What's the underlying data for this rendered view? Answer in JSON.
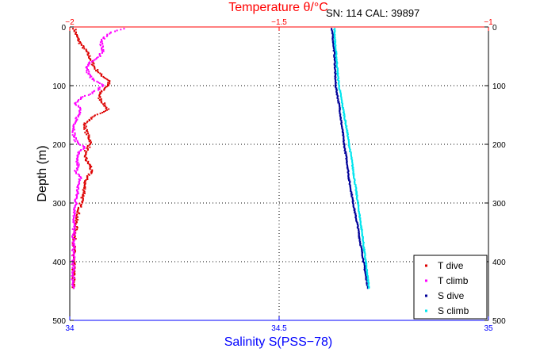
{
  "chart_data": {
    "type": "scatter",
    "title": "Temperature θ/°C",
    "annotation": "SN: 114  CAL: 39897",
    "xlabel": "Salinity S(PSS−78)",
    "ylabel": "Depth (m)",
    "x_bottom": {
      "label": "Salinity S(PSS−78)",
      "lim": [
        34,
        35
      ],
      "ticks": [
        34,
        34.5,
        35
      ],
      "tick_labels": [
        "34",
        "34.5",
        "35"
      ],
      "color": "#0000ff"
    },
    "x_top": {
      "label": "Temperature θ/°C",
      "lim": [
        -2,
        -1
      ],
      "ticks": [
        -2,
        -1.5,
        -1
      ],
      "tick_labels": [
        "−2",
        "−1.5",
        "−1"
      ],
      "color": "#ff0000"
    },
    "y": {
      "lim": [
        0,
        500
      ],
      "reversed": true,
      "ticks": [
        0,
        100,
        200,
        300,
        400,
        500
      ],
      "tick_labels": [
        "0",
        "100",
        "200",
        "300",
        "400",
        "500"
      ]
    },
    "grid": true,
    "legend_position": "bottom-right",
    "series": [
      {
        "name": "T dive",
        "axis": "temperature",
        "color": "#dd0000",
        "depth": [
          3,
          15,
          28,
          42,
          55,
          70,
          82,
          92,
          100,
          110,
          120,
          130,
          140,
          152,
          165,
          180,
          195,
          205,
          215,
          228,
          238,
          248,
          258,
          270,
          282,
          292,
          305,
          318,
          330,
          342,
          355,
          370,
          385,
          400,
          415,
          430,
          445
        ],
        "values": [
          -1.989,
          -1.984,
          -1.975,
          -1.96,
          -1.95,
          -1.94,
          -1.925,
          -1.905,
          -1.91,
          -1.925,
          -1.93,
          -1.92,
          -1.91,
          -1.94,
          -1.965,
          -1.96,
          -1.95,
          -1.955,
          -1.965,
          -1.96,
          -1.95,
          -1.95,
          -1.96,
          -1.965,
          -1.965,
          -1.97,
          -1.975,
          -1.98,
          -1.985,
          -1.985,
          -1.988,
          -1.99,
          -1.99,
          -1.991,
          -1.991,
          -1.991,
          -1.992
        ]
      },
      {
        "name": "T climb",
        "axis": "temperature",
        "color": "#ff00ff",
        "depth": [
          3,
          10,
          20,
          30,
          40,
          50,
          60,
          70,
          80,
          90,
          100,
          110,
          120,
          130,
          140,
          150,
          160,
          172,
          185,
          195,
          205,
          215,
          225,
          235,
          245,
          258,
          270,
          282,
          295,
          310,
          325,
          340,
          355,
          370,
          385,
          400,
          415,
          430,
          445
        ],
        "values": [
          -1.87,
          -1.905,
          -1.92,
          -1.925,
          -1.92,
          -1.93,
          -1.95,
          -1.96,
          -1.955,
          -1.945,
          -1.92,
          -1.94,
          -1.97,
          -1.985,
          -1.975,
          -1.98,
          -1.985,
          -1.99,
          -1.99,
          -1.985,
          -1.965,
          -1.98,
          -1.985,
          -1.98,
          -1.985,
          -1.975,
          -1.98,
          -1.982,
          -1.985,
          -1.987,
          -1.989,
          -1.99,
          -1.991,
          -1.991,
          -1.991,
          -1.992,
          -1.992,
          -1.992,
          -1.991
        ]
      },
      {
        "name": "S dive",
        "axis": "salinity",
        "color": "#000099",
        "depth": [
          3,
          15,
          30,
          45,
          60,
          80,
          100,
          120,
          140,
          160,
          180,
          200,
          220,
          240,
          260,
          280,
          300,
          320,
          340,
          360,
          380,
          400,
          420,
          435,
          445
        ],
        "values": [
          34.625,
          34.628,
          34.63,
          34.632,
          34.633,
          34.634,
          34.635,
          34.64,
          34.645,
          34.648,
          34.652,
          34.655,
          34.66,
          34.664,
          34.667,
          34.672,
          34.677,
          34.682,
          34.688,
          34.692,
          34.697,
          34.702,
          34.706,
          34.71,
          34.712
        ]
      },
      {
        "name": "S climb",
        "axis": "salinity",
        "color": "#00e5ee",
        "depth": [
          3,
          15,
          30,
          45,
          60,
          80,
          100,
          120,
          140,
          160,
          180,
          200,
          220,
          240,
          260,
          280,
          300,
          320,
          340,
          360,
          380,
          400,
          420,
          435,
          445
        ],
        "values": [
          34.632,
          34.633,
          34.634,
          34.636,
          34.638,
          34.64,
          34.643,
          34.648,
          34.653,
          34.658,
          34.663,
          34.667,
          34.672,
          34.676,
          34.68,
          34.684,
          34.688,
          34.692,
          34.696,
          34.7,
          34.703,
          34.707,
          34.71,
          34.713,
          34.715
        ]
      }
    ]
  }
}
